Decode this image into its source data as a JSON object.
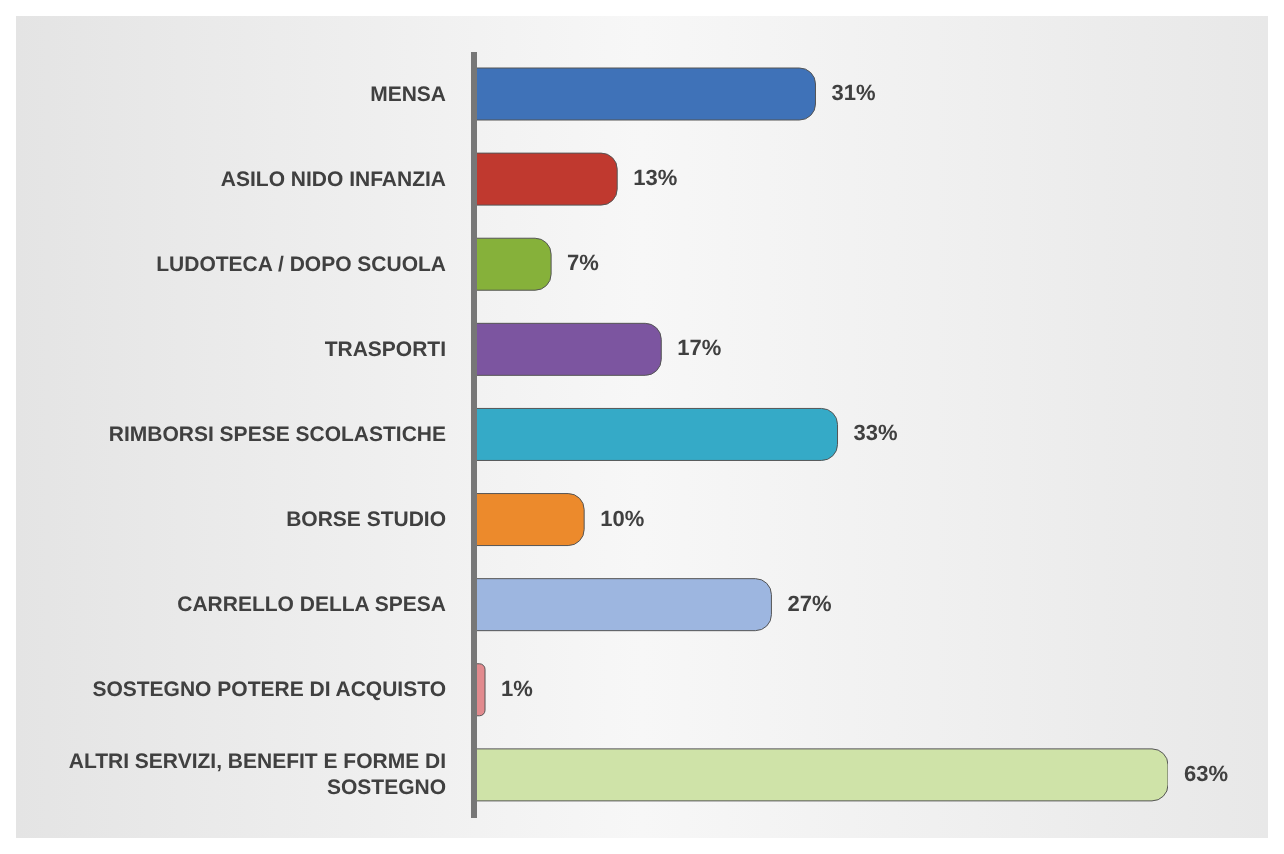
{
  "chart_data": {
    "type": "bar",
    "orientation": "horizontal",
    "categories": [
      "MENSA",
      "ASILO NIDO INFANZIA",
      "LUDOTECA / DOPO SCUOLA",
      "TRASPORTI",
      "RIMBORSI SPESE SCOLASTICHE",
      "BORSE STUDIO",
      "CARRELLO DELLA SPESA",
      "SOSTEGNO POTERE DI ACQUISTO",
      "ALTRI SERVIZI, BENEFIT E FORME DI SOSTEGNO"
    ],
    "values": [
      31,
      13,
      7,
      17,
      33,
      10,
      27,
      1,
      63
    ],
    "value_labels": [
      "31%",
      "13%",
      "7%",
      "17%",
      "33%",
      "10%",
      "27%",
      "1%",
      "63%"
    ],
    "colors": [
      "#3f72b8",
      "#c0392f",
      "#86b13a",
      "#7c55a0",
      "#35aac7",
      "#ec8a2c",
      "#9db6e0",
      "#e28a8e",
      "#cfe3a8"
    ]
  }
}
